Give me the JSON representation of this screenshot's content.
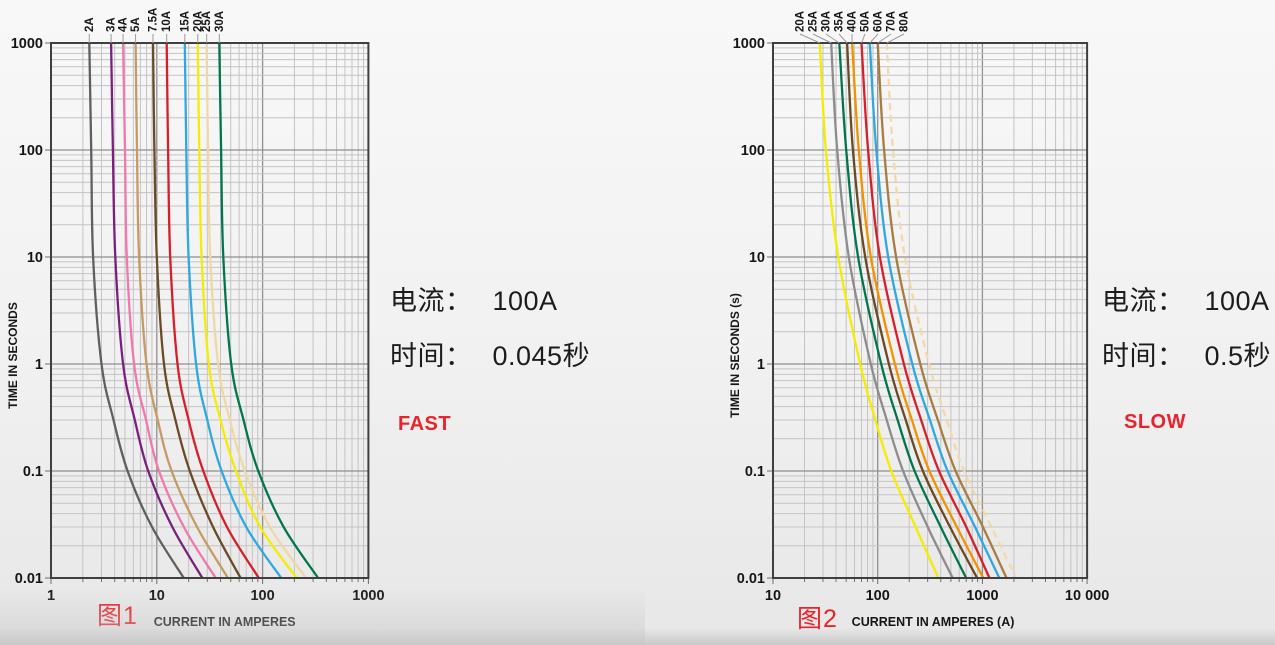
{
  "colors": {
    "accent_red": "#e8232b",
    "text_dark": "#1c1c1c",
    "grid_minor": "#c4c4c4",
    "grid_major": "#8f8f8f",
    "plot_border": "#3f3f3f",
    "leader_gray": "#9a9a9a"
  },
  "annotations": [
    {
      "current_label": "电流：",
      "current_value": "100A",
      "time_label": "时间：",
      "time_value": "0.045秒",
      "speed_tag": "FAST"
    },
    {
      "current_label": "电流：",
      "current_value": "100A",
      "time_label": "时间：",
      "time_value": "0.5秒",
      "speed_tag": "SLOW"
    }
  ],
  "chart_data": [
    {
      "type": "line",
      "title": "图1",
      "subtitle": "FAST",
      "xlabel": "CURRENT IN AMPERES",
      "ylabel": "TIME IN SECONDS",
      "xlim": [
        1,
        1000
      ],
      "ylim": [
        0.01,
        1000
      ],
      "x_scale": "log",
      "y_scale": "log",
      "grid": "log-log with minor divisions",
      "legend_position": "rotated labels above curve tops",
      "x_ticks": [
        "1",
        "10",
        "100",
        "1000"
      ],
      "y_ticks": [
        "1000",
        "100",
        "10",
        "1",
        "0.1",
        "0.01"
      ],
      "sample_times_s": [
        1000,
        100,
        10,
        1,
        0.3,
        0.1,
        0.03,
        0.01
      ],
      "series": [
        {
          "label": "2A",
          "color": "#5f5f5f",
          "currents_a": [
            2.3,
            2.4,
            2.5,
            3.0,
            3.9,
            5.3,
            9.0,
            18
          ]
        },
        {
          "label": "3A",
          "color": "#7b1f7e",
          "currents_a": [
            3.7,
            3.85,
            4.05,
            4.8,
            6.2,
            8.3,
            14,
            27
          ]
        },
        {
          "label": "4A",
          "color": "#f078ad",
          "currents_a": [
            4.8,
            5.0,
            5.2,
            6.1,
            7.9,
            10.5,
            18,
            36
          ]
        },
        {
          "label": "5A",
          "color": "#c59a63",
          "currents_a": [
            6.3,
            6.5,
            6.8,
            8.0,
            10.2,
            13.8,
            24,
            47
          ]
        },
        {
          "label": "7.5A",
          "color": "#6b4a25",
          "currents_a": [
            9.2,
            9.5,
            10.0,
            11.7,
            15,
            20.5,
            34,
            62
          ]
        },
        {
          "label": "10A",
          "color": "#d81e2a",
          "currents_a": [
            12.4,
            12.8,
            13.4,
            15.7,
            20,
            27.5,
            46,
            92
          ]
        },
        {
          "label": "15A",
          "color": "#2ea8e0",
          "currents_a": [
            18.4,
            19,
            20,
            23.5,
            30,
            41,
            70,
            150
          ]
        },
        {
          "label": "20A",
          "color": "#f5ec00",
          "currents_a": [
            24.4,
            25.2,
            26.5,
            31,
            40,
            56,
            95,
            210
          ]
        },
        {
          "label": "25A",
          "color": "#f0d8a4",
          "currents_a": [
            29.6,
            30.5,
            32,
            38,
            49,
            68,
            117,
            258
          ]
        },
        {
          "label": "30A",
          "color": "#00764b",
          "currents_a": [
            39,
            40.5,
            42.5,
            50.5,
            66,
            91,
            158,
            335
          ]
        }
      ]
    },
    {
      "type": "line",
      "title": "图2",
      "subtitle": "SLOW",
      "xlabel": "CURRENT IN AMPERES  (A)",
      "ylabel": "TIME IN SECONDS  (s)",
      "xlim": [
        10,
        10000
      ],
      "ylim": [
        0.01,
        1000
      ],
      "x_scale": "log",
      "y_scale": "log",
      "grid": "log-log with minor divisions",
      "legend_position": "rotated labels fanned above plot with slanted leaders",
      "x_ticks": [
        "10",
        "100",
        "1000",
        "10 000"
      ],
      "y_ticks": [
        "1000",
        "100",
        "10",
        "1",
        "0.1",
        "0.01"
      ],
      "sample_times_s": [
        1000,
        100,
        10,
        1,
        0.3,
        0.1,
        0.03,
        0.01
      ],
      "series": [
        {
          "label": "20A",
          "color": "#f5ec00",
          "currents_a": [
            28,
            32,
            42,
            68,
            95,
            135,
            230,
            380
          ]
        },
        {
          "label": "25A",
          "color": "#8c8c8c",
          "currents_a": [
            36,
            41,
            53,
            86,
            122,
            175,
            300,
            520
          ]
        },
        {
          "label": "30A",
          "color": "#00764b",
          "currents_a": [
            43,
            50,
            65,
            108,
            155,
            225,
            400,
            700
          ]
        },
        {
          "label": "35A",
          "color": "#6b4a21",
          "currents_a": [
            51,
            58,
            76,
            128,
            185,
            270,
            490,
            890
          ]
        },
        {
          "label": "40A",
          "color": "#f29200",
          "currents_a": [
            57,
            66,
            86,
            146,
            212,
            312,
            570,
            1020
          ]
        },
        {
          "label": "50A",
          "color": "#d81e2a",
          "currents_a": [
            70,
            81,
            105,
            178,
            260,
            385,
            700,
            1170
          ]
        },
        {
          "label": "60A",
          "color": "#2ea8e0",
          "currents_a": [
            84,
            97,
            126,
            214,
            315,
            465,
            850,
            1450
          ]
        },
        {
          "label": "70A",
          "color": "#a87c3e",
          "currents_a": [
            100,
            115,
            150,
            255,
            375,
            555,
            1010,
            1700
          ]
        },
        {
          "label": "80A",
          "color": "#f3d9a5",
          "dashed": true,
          "currents_a": [
            122,
            140,
            182,
            310,
            455,
            670,
            1220,
            2100
          ]
        }
      ]
    }
  ]
}
